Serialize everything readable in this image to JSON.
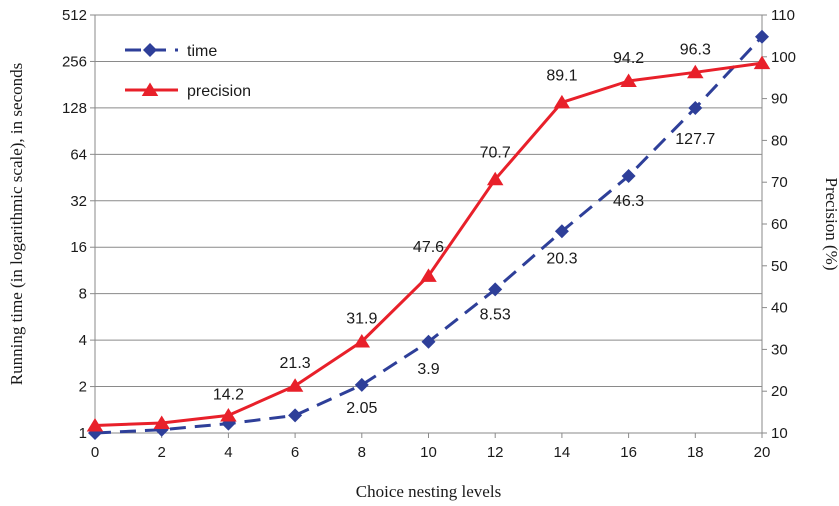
{
  "chart_data": {
    "type": "line",
    "xlabel": "Choice nesting levels",
    "ylabel_left": "Running time (in logarithmic scale), in seconds",
    "ylabel_right": "Precision (%)",
    "x": [
      0,
      2,
      4,
      6,
      8,
      10,
      12,
      14,
      16,
      18,
      20
    ],
    "x_ticks": [
      "0",
      "2",
      "4",
      "6",
      "8",
      "10",
      "12",
      "14",
      "16",
      "18",
      "20"
    ],
    "x_range": [
      0,
      20
    ],
    "y_left_scale": "log2",
    "y_left_range": [
      1,
      512
    ],
    "y_left_ticks": [
      "1",
      "2",
      "4",
      "8",
      "16",
      "32",
      "64",
      "128",
      "256",
      "512"
    ],
    "y_right_range": [
      10,
      110
    ],
    "y_right_ticks": [
      "10",
      "20",
      "30",
      "40",
      "50",
      "60",
      "70",
      "80",
      "90",
      "100",
      "110"
    ],
    "grid": true,
    "legend_position": "top-left",
    "series": [
      {
        "name": "time",
        "axis": "left",
        "color": "#2e3f99",
        "style": "dashed",
        "marker": "diamond",
        "values": [
          1.0,
          1.05,
          1.15,
          1.3,
          2.05,
          3.9,
          8.53,
          20.3,
          46.3,
          127.7,
          370
        ],
        "labels": [
          "",
          "",
          "",
          "",
          "2.05",
          "3.9",
          "8.53",
          "20.3",
          "46.3",
          "127.7",
          ""
        ]
      },
      {
        "name": "precision",
        "axis": "right",
        "color": "#e8202a",
        "style": "solid",
        "marker": "triangle",
        "values": [
          11.8,
          12.4,
          14.2,
          21.3,
          31.9,
          47.6,
          70.7,
          89.1,
          94.2,
          96.3,
          98.5
        ],
        "labels": [
          "",
          "",
          "14.2",
          "21.3",
          "31.9",
          "47.6",
          "70.7",
          "89.1",
          "94.2",
          "96.3",
          ""
        ]
      }
    ]
  }
}
